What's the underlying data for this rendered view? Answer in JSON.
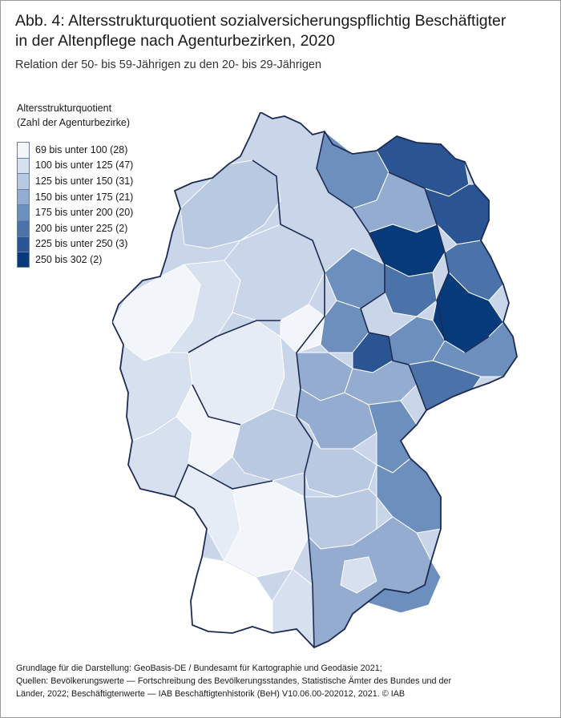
{
  "title_line1": "Abb. 4: Altersstrukturquotient sozialversicherungspflichtig Beschäftigter",
  "title_line2": "in der Altenpflege nach Agenturbezirken, 2020",
  "subtitle": "Relation der 50- bis 59-Jährigen zu den 20- bis 29-Jährigen",
  "legend": {
    "title_line1": "Altersstrukturquotient",
    "title_line2": "(Zahl der Agenturbezirke)",
    "items": [
      {
        "label": "69 bis unter 100 (28)",
        "color": "#f2f5fa"
      },
      {
        "label": "100 bis unter 125 (47)",
        "color": "#d6e0ee"
      },
      {
        "label": "125 bis unter 150 (31)",
        "color": "#b9c9e1"
      },
      {
        "label": "150 bis unter 175 (21)",
        "color": "#93acd0"
      },
      {
        "label": "175 bis unter 200 (20)",
        "color": "#6d8fbe"
      },
      {
        "label": "200 bis unter 225 (2)",
        "color": "#4b73a9"
      },
      {
        "label": "225 bis unter 250 (3)",
        "color": "#2b5592"
      },
      {
        "label": "250 bis 302 (2)",
        "color": "#063a7a"
      }
    ]
  },
  "footer": {
    "line1": "Grundlage für die Darstellung: GeoBasis-DE / Bundesamt für Kartographie und Geodäsie 2021;",
    "line2": "Quellen: Bevölkerungswerte — Fortschreibung des Bevölkerungsstandes, Statistische Ämter des Bundes und der",
    "line3": "Länder, 2022; Beschäftigtenwerte — IAB Beschäftigtenhistorik (BeH) V10.06.00-202012, 2021. © IAB"
  }
}
